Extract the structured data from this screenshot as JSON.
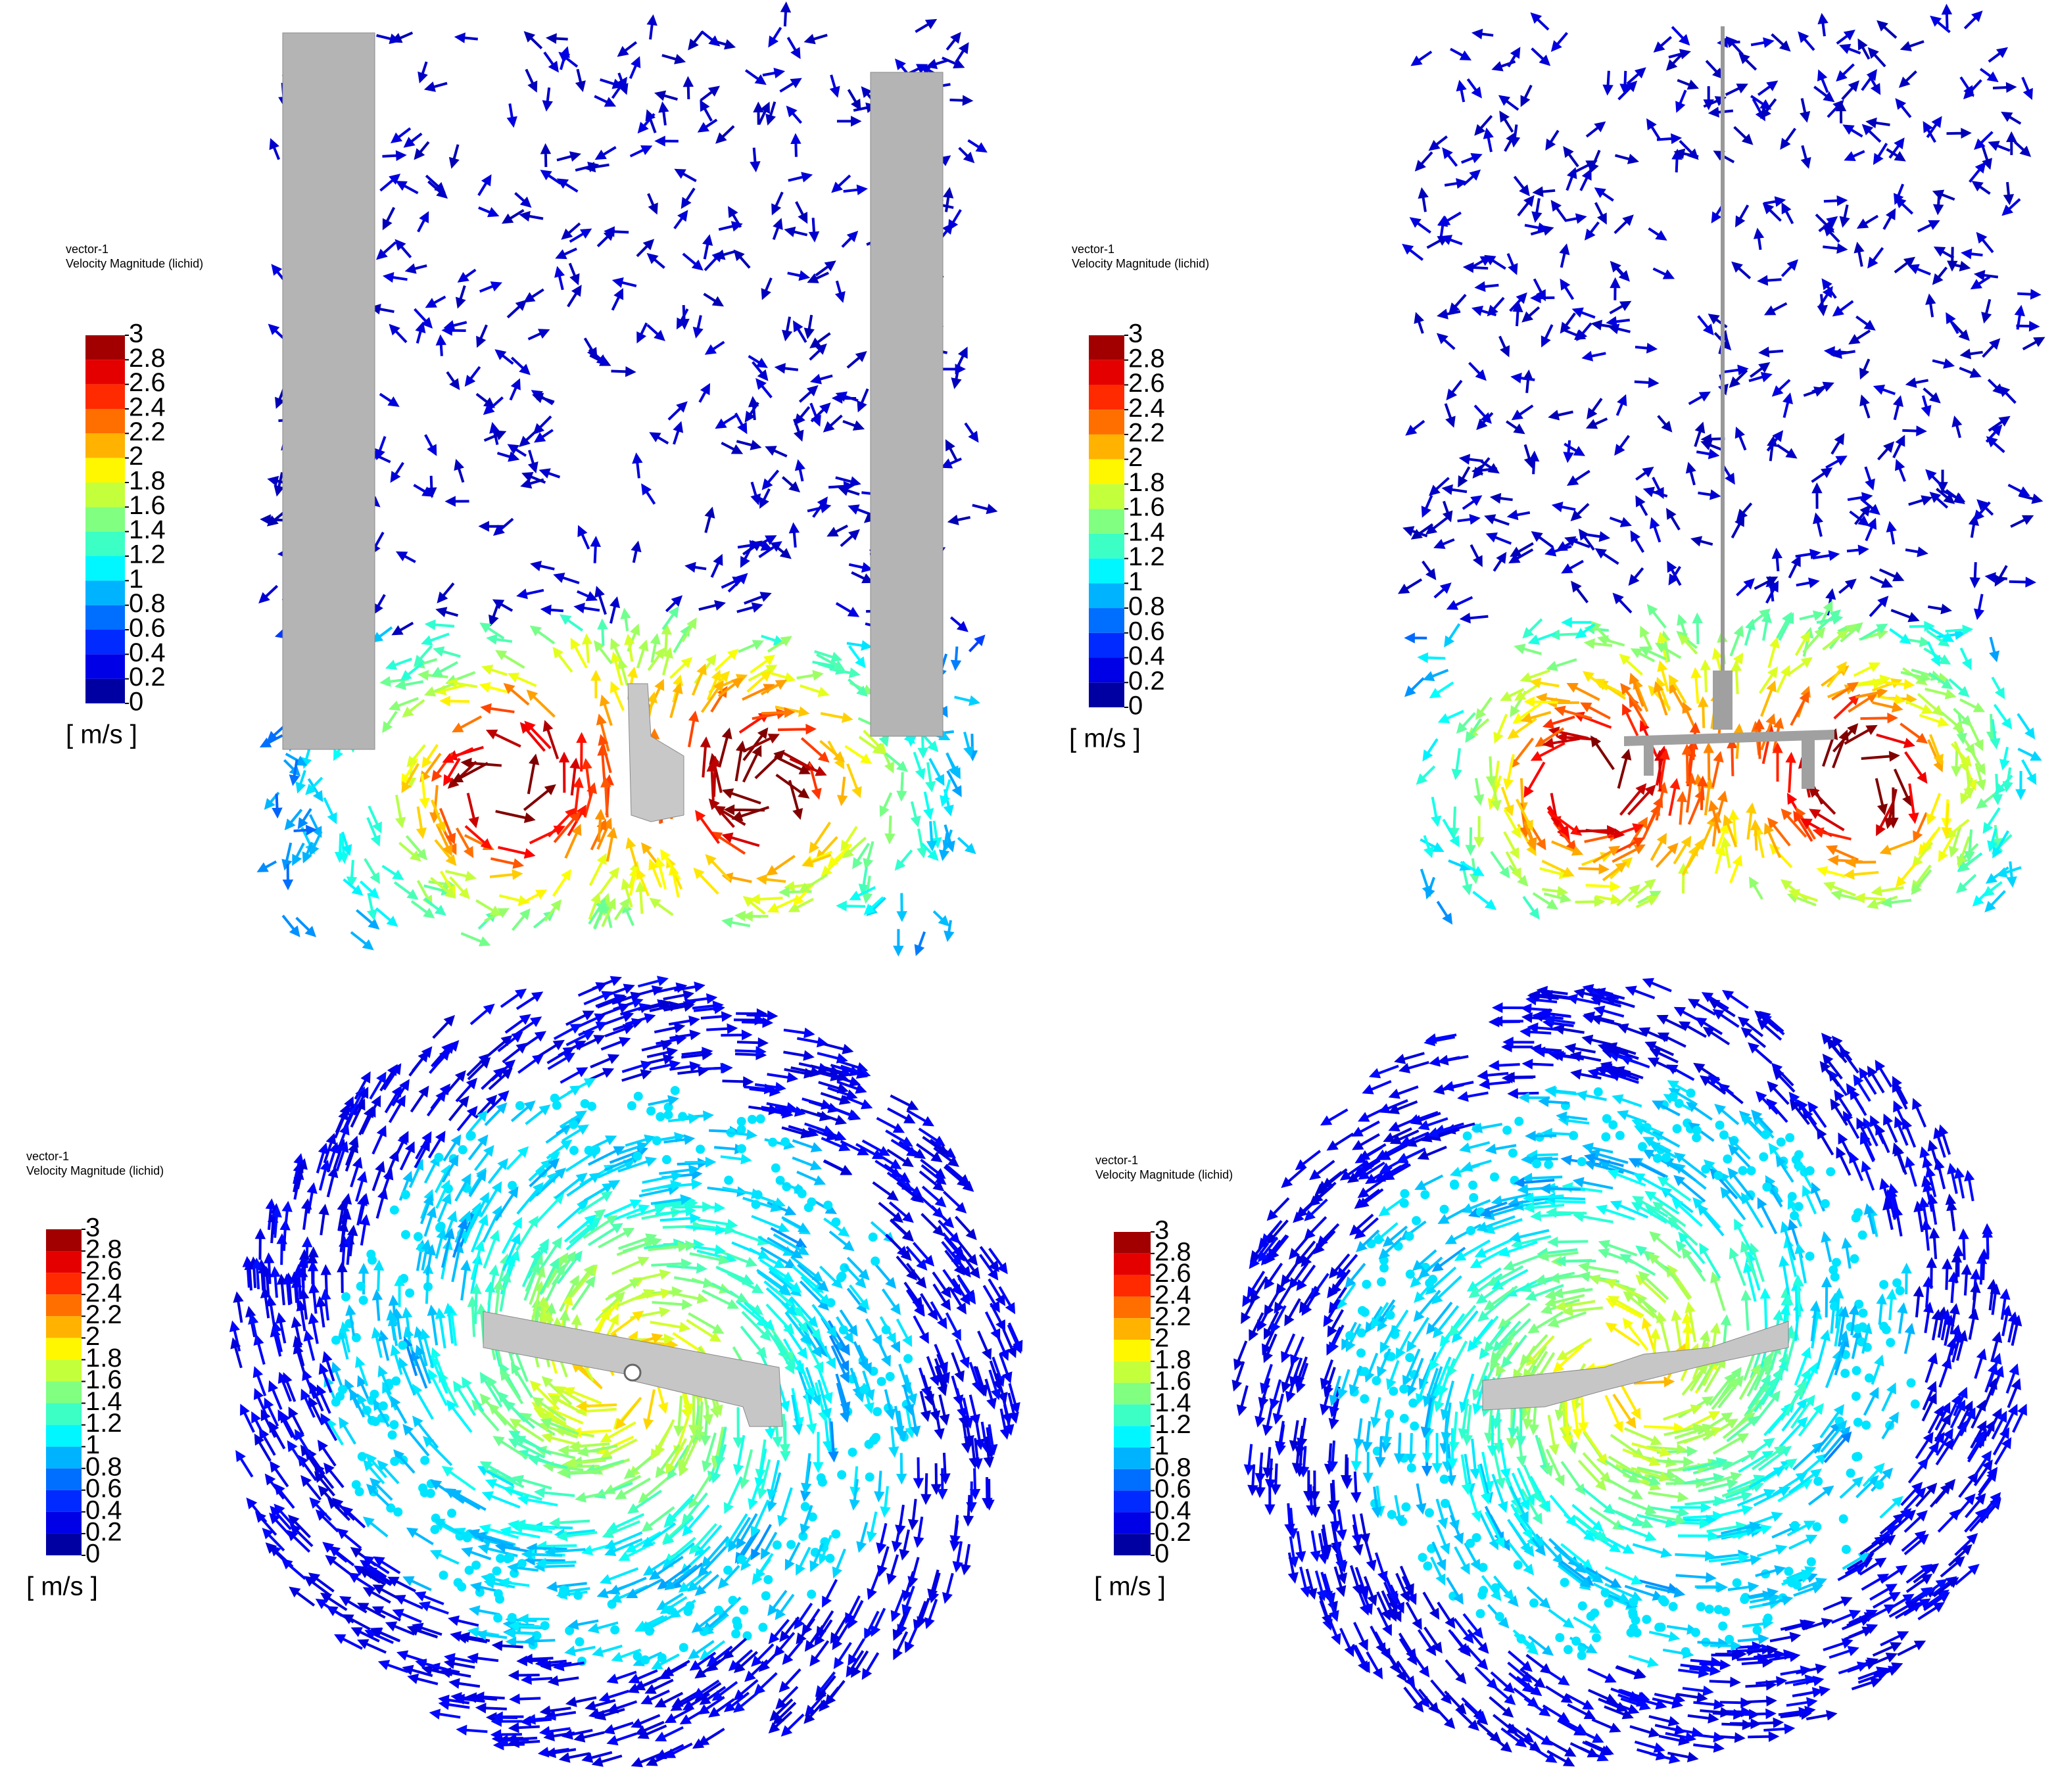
{
  "panels": [
    {
      "legend": {
        "name": "vector-1",
        "variable": "Velocity Magnitude (lichid)",
        "ticks": [
          3,
          2.8,
          2.6,
          2.4,
          2.2,
          2,
          1.8,
          1.6,
          1.4,
          1.2,
          1,
          0.8,
          0.6,
          0.4,
          0.2,
          0
        ],
        "unit": "[ m/s ]"
      }
    },
    {
      "legend": {
        "name": "vector-1",
        "variable": "Velocity Magnitude (lichid)",
        "ticks": [
          3,
          2.8,
          2.6,
          2.4,
          2.2,
          2,
          1.8,
          1.6,
          1.4,
          1.2,
          1,
          0.8,
          0.6,
          0.4,
          0.2,
          0
        ],
        "unit": "[ m/s ]"
      }
    },
    {
      "legend": {
        "name": "vector-1",
        "variable": "Velocity Magnitude (lichid)",
        "ticks": [
          3,
          2.8,
          2.6,
          2.4,
          2.2,
          2,
          1.8,
          1.6,
          1.4,
          1.2,
          1,
          0.8,
          0.6,
          0.4,
          0.2,
          0
        ],
        "unit": "[ m/s ]"
      }
    },
    {
      "legend": {
        "name": "vector-1",
        "variable": "Velocity Magnitude (lichid)",
        "ticks": [
          3,
          2.8,
          2.6,
          2.4,
          2.2,
          2,
          1.8,
          1.6,
          1.4,
          1.2,
          1,
          0.8,
          0.6,
          0.4,
          0.2,
          0
        ],
        "unit": "[ m/s ]"
      }
    }
  ]
}
